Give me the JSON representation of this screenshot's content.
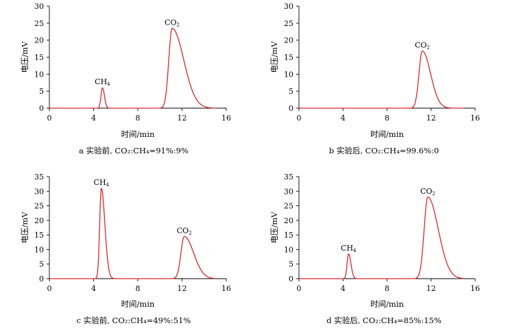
{
  "figure": {
    "panels": [
      {
        "id": "a",
        "caption": "a  实验前, CO₂:CH₄=91%:9%",
        "chart_data": {
          "type": "line",
          "xlabel": "时间/min",
          "ylabel": "电压/mV",
          "xlim": [
            0,
            16
          ],
          "ylim": [
            0,
            30
          ],
          "xticks": [
            0,
            4,
            8,
            12,
            16
          ],
          "yticks": [
            0,
            5,
            10,
            15,
            20,
            25,
            30
          ],
          "grid": false,
          "color": "#e0232b",
          "peaks": [
            {
              "label": "CH",
              "sub": "4",
              "center": 4.8,
              "height": 6,
              "sigma_left": 0.13,
              "sigma_right": 0.18
            },
            {
              "label": "CO",
              "sub": "2",
              "center": 11.1,
              "height": 23.5,
              "sigma_left": 0.3,
              "sigma_right": 1.05
            }
          ]
        }
      },
      {
        "id": "b",
        "caption": "b  实验后, CO₂:CH₄=99.6%:0",
        "chart_data": {
          "type": "line",
          "xlabel": "时间/min",
          "ylabel": "电压/mV",
          "xlim": [
            0,
            16
          ],
          "ylim": [
            0,
            30
          ],
          "xticks": [
            0,
            4,
            8,
            12,
            16
          ],
          "yticks": [
            0,
            5,
            10,
            15,
            20,
            25,
            30
          ],
          "grid": false,
          "color": "#e0232b",
          "peaks": [
            {
              "label": "CO",
              "sub": "2",
              "center": 11.2,
              "height": 16.8,
              "sigma_left": 0.3,
              "sigma_right": 0.75
            }
          ]
        }
      },
      {
        "id": "c",
        "caption": "c  实验前, CO₂:CH₄=49%:51%",
        "chart_data": {
          "type": "line",
          "xlabel": "时间/min",
          "ylabel": "电压/mV",
          "xlim": [
            0,
            16
          ],
          "ylim": [
            0,
            35
          ],
          "xticks": [
            0,
            4,
            8,
            12,
            16
          ],
          "yticks": [
            0,
            5,
            10,
            15,
            20,
            25,
            30,
            35
          ],
          "grid": false,
          "color": "#e0232b",
          "peaks": [
            {
              "label": "CH",
              "sub": "4",
              "center": 4.7,
              "height": 31,
              "sigma_left": 0.15,
              "sigma_right": 0.32
            },
            {
              "label": "CO",
              "sub": "2",
              "center": 12.2,
              "height": 14.5,
              "sigma_left": 0.3,
              "sigma_right": 0.85
            }
          ]
        }
      },
      {
        "id": "d",
        "caption": "d  实验后, CO₂:CH₄=85%:15%",
        "chart_data": {
          "type": "line",
          "xlabel": "时间/min",
          "ylabel": "电压/mV",
          "xlim": [
            0,
            16
          ],
          "ylim": [
            0,
            35
          ],
          "xticks": [
            0,
            4,
            8,
            12,
            16
          ],
          "yticks": [
            0,
            5,
            10,
            15,
            20,
            25,
            30,
            35
          ],
          "grid": false,
          "color": "#e0232b",
          "peaks": [
            {
              "label": "CH",
              "sub": "4",
              "center": 4.5,
              "height": 8.5,
              "sigma_left": 0.13,
              "sigma_right": 0.22
            },
            {
              "label": "CO",
              "sub": "2",
              "center": 11.7,
              "height": 28,
              "sigma_left": 0.33,
              "sigma_right": 0.95
            }
          ]
        }
      }
    ]
  }
}
